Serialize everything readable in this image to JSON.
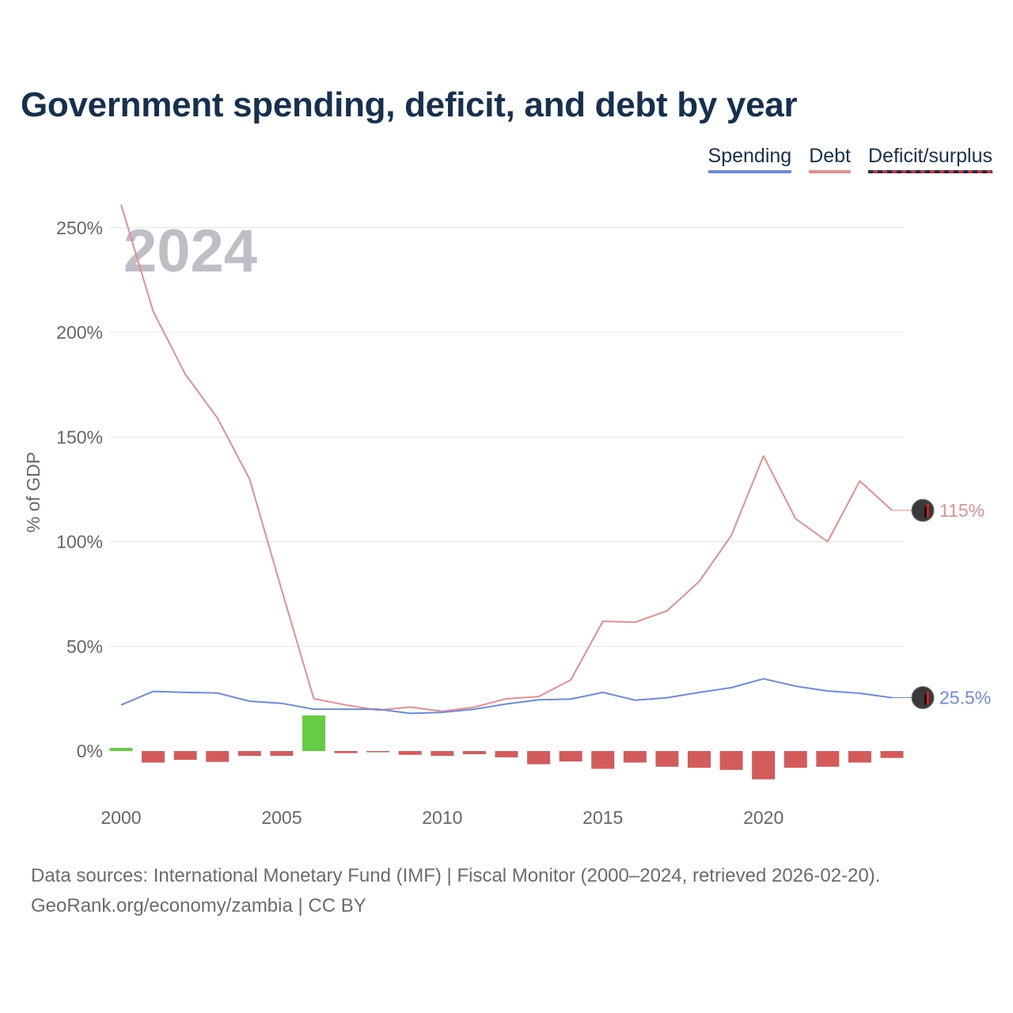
{
  "title": "Government spending, deficit, and debt by year",
  "legend": {
    "spending": "Spending",
    "debt": "Debt",
    "deficit": "Deficit/surplus"
  },
  "colors": {
    "spending": "#6a8be0",
    "debt": "#e88d8d",
    "deficit_negative": "#d45b5b",
    "deficit_positive": "#66cc44",
    "title": "#16304f"
  },
  "chart_data": {
    "type": "line",
    "title": "Government spending, deficit, and debt by year",
    "year_label": "2024",
    "xlabel": "",
    "ylabel": "% of GDP",
    "xlim": [
      2000,
      2024
    ],
    "ylim": [
      -20,
      260
    ],
    "x_ticks": [
      "2000",
      "2005",
      "2010",
      "2015",
      "2020"
    ],
    "y_ticks": [
      "0%",
      "50%",
      "100%",
      "150%",
      "200%",
      "250%"
    ],
    "x": [
      2000,
      2001,
      2002,
      2003,
      2004,
      2005,
      2006,
      2007,
      2008,
      2009,
      2010,
      2011,
      2012,
      2013,
      2014,
      2015,
      2016,
      2017,
      2018,
      2019,
      2020,
      2021,
      2022,
      2023,
      2024
    ],
    "series": [
      {
        "name": "Spending",
        "type": "line",
        "values": [
          22,
          28.5,
          28,
          27.7,
          23.8,
          22.8,
          20,
          20,
          20,
          18,
          18.5,
          20,
          22.5,
          24.5,
          24.8,
          28,
          24.3,
          25.5,
          28,
          30.3,
          34.5,
          31,
          28.7,
          27.6,
          25.5
        ],
        "end_label": "25.5%"
      },
      {
        "name": "Debt",
        "type": "line",
        "values": [
          261,
          210,
          180,
          159,
          130,
          77,
          25,
          22,
          19.5,
          21,
          19,
          21,
          25,
          26,
          34,
          62,
          61.5,
          67,
          81,
          103,
          141,
          111,
          100,
          129,
          115
        ],
        "end_label": "115%"
      },
      {
        "name": "Deficit/surplus",
        "type": "bar",
        "values": [
          1.5,
          -5.5,
          -4.2,
          -5.2,
          -2.3,
          -2.3,
          17,
          -1,
          -0.5,
          -1.8,
          -2.3,
          -1.5,
          -3,
          -6.3,
          -5,
          -8.5,
          -5.5,
          -7.5,
          -8,
          -9,
          -13.5,
          -8,
          -7.5,
          -5.5,
          -3.3
        ]
      }
    ]
  },
  "footer": {
    "line1": "Data sources: International Monetary Fund (IMF) | Fiscal Monitor (2000–2024, retrieved 2026-02-20).",
    "line2": "GeoRank.org/economy/zambia | CC BY"
  }
}
